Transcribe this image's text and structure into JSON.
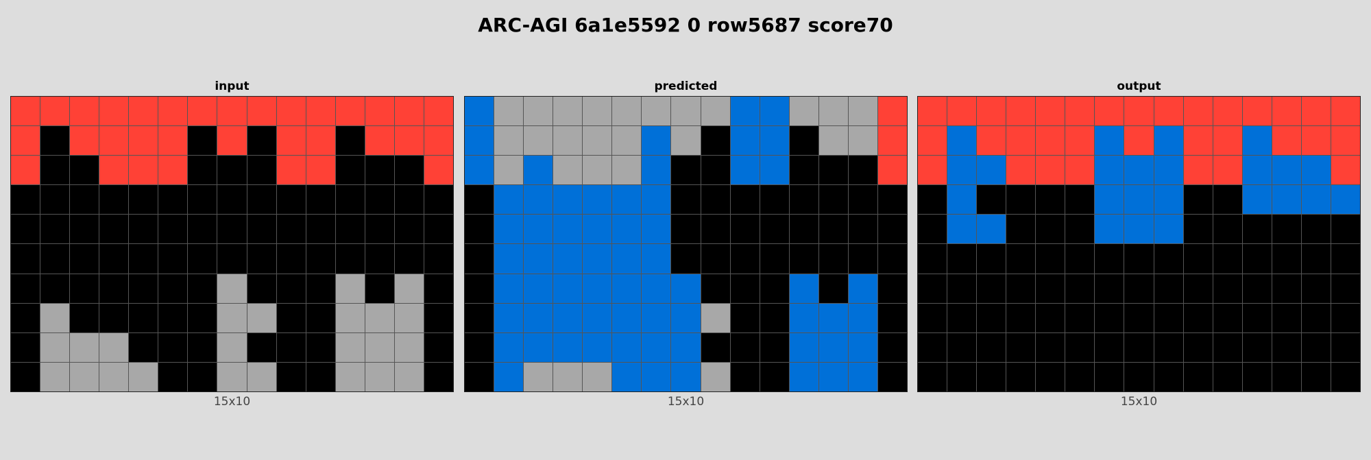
{
  "title": "ARC-AGI 6a1e5592 0 row5687 score70",
  "palette": {
    "0": "#000000",
    "1": "#0070d8",
    "2": "#ff4136",
    "5": "#a8a8a8"
  },
  "panels": [
    {
      "label": "input",
      "caption": "15x10",
      "grid": [
        [
          2,
          2,
          2,
          2,
          2,
          2,
          2,
          2,
          2,
          2,
          2,
          2,
          2,
          2,
          2
        ],
        [
          2,
          0,
          2,
          2,
          2,
          2,
          0,
          2,
          0,
          2,
          2,
          0,
          2,
          2,
          2
        ],
        [
          2,
          0,
          0,
          2,
          2,
          2,
          0,
          0,
          0,
          2,
          2,
          0,
          0,
          0,
          2
        ],
        [
          0,
          0,
          0,
          0,
          0,
          0,
          0,
          0,
          0,
          0,
          0,
          0,
          0,
          0,
          0
        ],
        [
          0,
          0,
          0,
          0,
          0,
          0,
          0,
          0,
          0,
          0,
          0,
          0,
          0,
          0,
          0
        ],
        [
          0,
          0,
          0,
          0,
          0,
          0,
          0,
          0,
          0,
          0,
          0,
          0,
          0,
          0,
          0
        ],
        [
          0,
          0,
          0,
          0,
          0,
          0,
          0,
          5,
          0,
          0,
          0,
          5,
          0,
          5,
          0
        ],
        [
          0,
          5,
          0,
          0,
          0,
          0,
          0,
          5,
          5,
          0,
          0,
          5,
          5,
          5,
          0
        ],
        [
          0,
          5,
          5,
          5,
          0,
          0,
          0,
          5,
          0,
          0,
          0,
          5,
          5,
          5,
          0
        ],
        [
          0,
          5,
          5,
          5,
          5,
          0,
          0,
          5,
          5,
          0,
          0,
          5,
          5,
          5,
          0
        ]
      ]
    },
    {
      "label": "predicted",
      "caption": "15x10",
      "grid": [
        [
          1,
          5,
          5,
          5,
          5,
          5,
          5,
          5,
          5,
          1,
          1,
          5,
          5,
          5,
          2
        ],
        [
          1,
          5,
          5,
          5,
          5,
          5,
          1,
          5,
          0,
          1,
          1,
          0,
          5,
          5,
          2
        ],
        [
          1,
          5,
          1,
          5,
          5,
          5,
          1,
          0,
          0,
          1,
          1,
          0,
          0,
          0,
          2
        ],
        [
          0,
          1,
          1,
          1,
          1,
          1,
          1,
          0,
          0,
          0,
          0,
          0,
          0,
          0,
          0
        ],
        [
          0,
          1,
          1,
          1,
          1,
          1,
          1,
          0,
          0,
          0,
          0,
          0,
          0,
          0,
          0
        ],
        [
          0,
          1,
          1,
          1,
          1,
          1,
          1,
          0,
          0,
          0,
          0,
          0,
          0,
          0,
          0
        ],
        [
          0,
          1,
          1,
          1,
          1,
          1,
          1,
          1,
          0,
          0,
          0,
          1,
          0,
          1,
          0
        ],
        [
          0,
          1,
          1,
          1,
          1,
          1,
          1,
          1,
          5,
          0,
          0,
          1,
          1,
          1,
          0
        ],
        [
          0,
          1,
          1,
          1,
          1,
          1,
          1,
          1,
          0,
          0,
          0,
          1,
          1,
          1,
          0
        ],
        [
          0,
          1,
          5,
          5,
          5,
          1,
          1,
          1,
          5,
          0,
          0,
          1,
          1,
          1,
          0
        ]
      ]
    },
    {
      "label": "output",
      "caption": "15x10",
      "grid": [
        [
          2,
          2,
          2,
          2,
          2,
          2,
          2,
          2,
          2,
          2,
          2,
          2,
          2,
          2,
          2
        ],
        [
          2,
          1,
          2,
          2,
          2,
          2,
          1,
          2,
          1,
          2,
          2,
          1,
          2,
          2,
          2
        ],
        [
          2,
          1,
          1,
          2,
          2,
          2,
          1,
          1,
          1,
          2,
          2,
          1,
          1,
          1,
          2
        ],
        [
          0,
          1,
          0,
          0,
          0,
          0,
          1,
          1,
          1,
          0,
          0,
          1,
          1,
          1,
          1
        ],
        [
          0,
          1,
          1,
          0,
          0,
          0,
          1,
          1,
          1,
          0,
          0,
          0,
          0,
          0,
          0
        ],
        [
          0,
          0,
          0,
          0,
          0,
          0,
          0,
          0,
          0,
          0,
          0,
          0,
          0,
          0,
          0
        ],
        [
          0,
          0,
          0,
          0,
          0,
          0,
          0,
          0,
          0,
          0,
          0,
          0,
          0,
          0,
          0
        ],
        [
          0,
          0,
          0,
          0,
          0,
          0,
          0,
          0,
          0,
          0,
          0,
          0,
          0,
          0,
          0
        ],
        [
          0,
          0,
          0,
          0,
          0,
          0,
          0,
          0,
          0,
          0,
          0,
          0,
          0,
          0,
          0
        ],
        [
          0,
          0,
          0,
          0,
          0,
          0,
          0,
          0,
          0,
          0,
          0,
          0,
          0,
          0,
          0
        ]
      ]
    }
  ]
}
